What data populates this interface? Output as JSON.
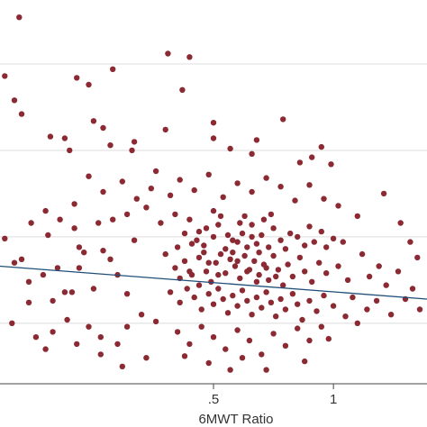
{
  "chart_data": {
    "type": "scatter",
    "title": "",
    "xlabel": "6MWT Ratio",
    "ylabel": "",
    "xlim": [
      -0.39,
      1.39
    ],
    "ylim": [
      -0.35,
      1.87
    ],
    "x_ticks": [
      {
        "value": 0.5,
        "label": ".5"
      },
      {
        "value": 1.0,
        "label": "1"
      }
    ],
    "y_gridlines": [
      0.0,
      0.5,
      1.0,
      1.5
    ],
    "grid": true,
    "marker_color": "#8b2a33",
    "fit_line_color": "#1f4e79",
    "gridline_color": "#dcdcdc",
    "fit_line": {
      "x": [
        -0.39,
        1.39
      ],
      "y": [
        0.33,
        0.14
      ]
    },
    "points": [
      [
        -0.31,
        1.77
      ],
      [
        -0.37,
        1.43
      ],
      [
        -0.33,
        1.29
      ],
      [
        -0.3,
        1.21
      ],
      [
        -0.07,
        1.42
      ],
      [
        0.08,
        1.47
      ],
      [
        -0.02,
        1.38
      ],
      [
        0.16,
        1.0
      ],
      [
        0.31,
        1.56
      ],
      [
        0.37,
        1.35
      ],
      [
        0.4,
        1.54
      ],
      [
        0.5,
        1.16
      ],
      [
        0.0,
        1.17
      ],
      [
        -0.12,
        1.07
      ],
      [
        -0.1,
        1.0
      ],
      [
        -0.18,
        1.08
      ],
      [
        0.07,
        1.03
      ],
      [
        0.04,
        1.13
      ],
      [
        0.17,
        1.05
      ],
      [
        0.3,
        1.12
      ],
      [
        0.5,
        1.07
      ],
      [
        0.57,
        1.01
      ],
      [
        0.68,
        1.06
      ],
      [
        0.79,
        1.18
      ],
      [
        0.66,
        0.98
      ],
      [
        0.99,
        0.92
      ],
      [
        1.21,
        0.75
      ],
      [
        0.91,
        0.96
      ],
      [
        0.86,
        0.93
      ],
      [
        0.95,
        1.02
      ],
      [
        -0.37,
        0.49
      ],
      [
        -0.33,
        0.35
      ],
      [
        -0.3,
        0.37
      ],
      [
        -0.27,
        0.24
      ],
      [
        -0.27,
        0.12
      ],
      [
        -0.21,
        0.28
      ],
      [
        -0.19,
        0.51
      ],
      [
        -0.17,
        0.13
      ],
      [
        -0.15,
        0.32
      ],
      [
        -0.12,
        0.18
      ],
      [
        -0.09,
        0.18
      ],
      [
        -0.06,
        0.44
      ],
      [
        -0.06,
        0.32
      ],
      [
        -0.04,
        0.41
      ],
      [
        0.0,
        0.2
      ],
      [
        0.04,
        0.42
      ],
      [
        0.07,
        0.37
      ],
      [
        0.1,
        0.28
      ],
      [
        0.14,
        0.17
      ],
      [
        0.17,
        0.48
      ],
      [
        -0.34,
        0.0
      ],
      [
        -0.24,
        -0.08
      ],
      [
        -0.17,
        -0.05
      ],
      [
        -0.11,
        0.02
      ],
      [
        -0.02,
        -0.02
      ],
      [
        0.03,
        -0.08
      ],
      [
        0.1,
        -0.12
      ],
      [
        0.14,
        -0.02
      ],
      [
        0.2,
        0.05
      ],
      [
        0.26,
        0.01
      ],
      [
        0.22,
        0.67
      ],
      [
        0.28,
        0.58
      ],
      [
        0.34,
        0.63
      ],
      [
        0.35,
        0.44
      ],
      [
        0.4,
        0.6
      ],
      [
        0.44,
        0.53
      ],
      [
        0.46,
        0.45
      ],
      [
        0.5,
        0.65
      ],
      [
        0.52,
        0.57
      ],
      [
        0.56,
        0.51
      ],
      [
        0.58,
        0.48
      ],
      [
        0.6,
        0.47
      ],
      [
        0.62,
        0.52
      ],
      [
        0.64,
        0.44
      ],
      [
        0.66,
        0.5
      ],
      [
        0.68,
        0.46
      ],
      [
        0.7,
        0.51
      ],
      [
        0.73,
        0.44
      ],
      [
        0.75,
        0.55
      ],
      [
        0.78,
        0.48
      ],
      [
        0.8,
        0.43
      ],
      [
        0.82,
        0.52
      ],
      [
        0.85,
        0.5
      ],
      [
        0.88,
        0.45
      ],
      [
        0.9,
        0.56
      ],
      [
        0.92,
        0.47
      ],
      [
        0.95,
        0.53
      ],
      [
        0.97,
        0.44
      ],
      [
        1.0,
        0.49
      ],
      [
        1.04,
        0.47
      ],
      [
        0.3,
        0.4
      ],
      [
        0.34,
        0.32
      ],
      [
        0.38,
        0.36
      ],
      [
        0.41,
        0.28
      ],
      [
        0.44,
        0.38
      ],
      [
        0.47,
        0.3
      ],
      [
        0.49,
        0.24
      ],
      [
        0.51,
        0.35
      ],
      [
        0.53,
        0.4
      ],
      [
        0.55,
        0.29
      ],
      [
        0.57,
        0.37
      ],
      [
        0.59,
        0.33
      ],
      [
        0.61,
        0.26
      ],
      [
        0.63,
        0.39
      ],
      [
        0.65,
        0.31
      ],
      [
        0.67,
        0.36
      ],
      [
        0.69,
        0.28
      ],
      [
        0.71,
        0.34
      ],
      [
        0.73,
        0.25
      ],
      [
        0.75,
        0.39
      ],
      [
        0.77,
        0.31
      ],
      [
        0.79,
        0.22
      ],
      [
        0.81,
        0.34
      ],
      [
        0.83,
        0.27
      ],
      [
        0.86,
        0.38
      ],
      [
        0.88,
        0.3
      ],
      [
        0.91,
        0.24
      ],
      [
        0.94,
        0.35
      ],
      [
        0.97,
        0.29
      ],
      [
        1.02,
        0.33
      ],
      [
        0.32,
        0.18
      ],
      [
        0.36,
        0.12
      ],
      [
        0.39,
        0.2
      ],
      [
        0.42,
        0.15
      ],
      [
        0.45,
        0.08
      ],
      [
        0.48,
        0.17
      ],
      [
        0.5,
        0.11
      ],
      [
        0.52,
        0.2
      ],
      [
        0.54,
        0.14
      ],
      [
        0.56,
        0.06
      ],
      [
        0.58,
        0.16
      ],
      [
        0.6,
        0.1
      ],
      [
        0.62,
        0.19
      ],
      [
        0.64,
        0.13
      ],
      [
        0.66,
        0.05
      ],
      [
        0.68,
        0.15
      ],
      [
        0.7,
        0.09
      ],
      [
        0.72,
        0.18
      ],
      [
        0.74,
        0.12
      ],
      [
        0.76,
        0.04
      ],
      [
        0.78,
        0.14
      ],
      [
        0.8,
        0.08
      ],
      [
        0.83,
        0.17
      ],
      [
        0.85,
        0.11
      ],
      [
        0.87,
        0.02
      ],
      [
        0.9,
        0.13
      ],
      [
        0.93,
        0.07
      ],
      [
        0.96,
        0.16
      ],
      [
        1.0,
        0.1
      ],
      [
        1.05,
        0.04
      ],
      [
        0.35,
        -0.05
      ],
      [
        0.4,
        -0.12
      ],
      [
        0.45,
        -0.02
      ],
      [
        0.5,
        -0.08
      ],
      [
        0.55,
        -0.15
      ],
      [
        0.6,
        -0.04
      ],
      [
        0.65,
        -0.1
      ],
      [
        0.7,
        -0.18
      ],
      [
        0.75,
        -0.06
      ],
      [
        0.8,
        -0.13
      ],
      [
        0.85,
        -0.03
      ],
      [
        0.9,
        -0.1
      ],
      [
        0.95,
        -0.02
      ],
      [
        0.72,
        -0.27
      ],
      [
        0.62,
        -0.2
      ],
      [
        0.48,
        -0.23
      ],
      [
        0.38,
        -0.19
      ],
      [
        0.98,
        -0.09
      ],
      [
        0.88,
        -0.22
      ],
      [
        0.57,
        -0.27
      ],
      [
        1.12,
        0.4
      ],
      [
        1.15,
        0.27
      ],
      [
        1.19,
        0.33
      ],
      [
        1.22,
        0.22
      ],
      [
        1.27,
        0.3
      ],
      [
        1.3,
        0.14
      ],
      [
        1.33,
        0.2
      ],
      [
        1.35,
        0.38
      ],
      [
        1.36,
        0.08
      ],
      [
        1.08,
        0.15
      ],
      [
        1.1,
        0.0
      ],
      [
        1.14,
        0.08
      ],
      [
        1.18,
        0.13
      ],
      [
        1.24,
        0.05
      ],
      [
        1.06,
        0.25
      ],
      [
        0.12,
        0.82
      ],
      [
        0.18,
        0.72
      ],
      [
        0.24,
        0.78
      ],
      [
        0.26,
        0.88
      ],
      [
        0.32,
        0.74
      ],
      [
        0.36,
        0.83
      ],
      [
        0.42,
        0.77
      ],
      [
        0.48,
        0.86
      ],
      [
        0.54,
        0.73
      ],
      [
        0.6,
        0.81
      ],
      [
        0.66,
        0.76
      ],
      [
        0.72,
        0.84
      ],
      [
        0.78,
        0.79
      ],
      [
        0.84,
        0.71
      ],
      [
        0.9,
        0.8
      ],
      [
        0.04,
        0.76
      ],
      [
        -0.02,
        0.85
      ],
      [
        -0.08,
        0.69
      ],
      [
        0.08,
        0.6
      ],
      [
        0.14,
        0.63
      ],
      [
        1.32,
        0.47
      ],
      [
        1.28,
        0.58
      ],
      [
        1.1,
        0.62
      ],
      [
        1.02,
        0.68
      ],
      [
        0.96,
        0.72
      ],
      [
        -0.26,
        0.58
      ],
      [
        -0.2,
        0.65
      ],
      [
        -0.14,
        0.6
      ],
      [
        -0.08,
        0.55
      ],
      [
        0.02,
        0.58
      ],
      [
        0.22,
        -0.2
      ],
      [
        0.12,
        -0.25
      ],
      [
        0.03,
        -0.18
      ],
      [
        -0.07,
        -0.12
      ],
      [
        -0.2,
        -0.15
      ],
      [
        0.43,
        0.48
      ],
      [
        0.47,
        0.55
      ],
      [
        0.53,
        0.62
      ],
      [
        0.58,
        0.41
      ],
      [
        0.61,
        0.58
      ],
      [
        0.63,
        0.62
      ],
      [
        0.66,
        0.57
      ],
      [
        0.69,
        0.41
      ],
      [
        0.71,
        0.6
      ],
      [
        0.74,
        0.63
      ],
      [
        0.55,
        0.43
      ],
      [
        0.5,
        0.5
      ],
      [
        0.46,
        0.41
      ],
      [
        0.41,
        0.46
      ],
      [
        0.38,
        0.52
      ],
      [
        0.6,
        0.36
      ],
      [
        0.64,
        0.3
      ],
      [
        0.68,
        0.24
      ],
      [
        0.72,
        0.32
      ],
      [
        0.76,
        0.27
      ],
      [
        0.52,
        0.28
      ],
      [
        0.48,
        0.35
      ],
      [
        0.44,
        0.22
      ],
      [
        0.4,
        0.3
      ],
      [
        0.36,
        0.26
      ]
    ]
  }
}
